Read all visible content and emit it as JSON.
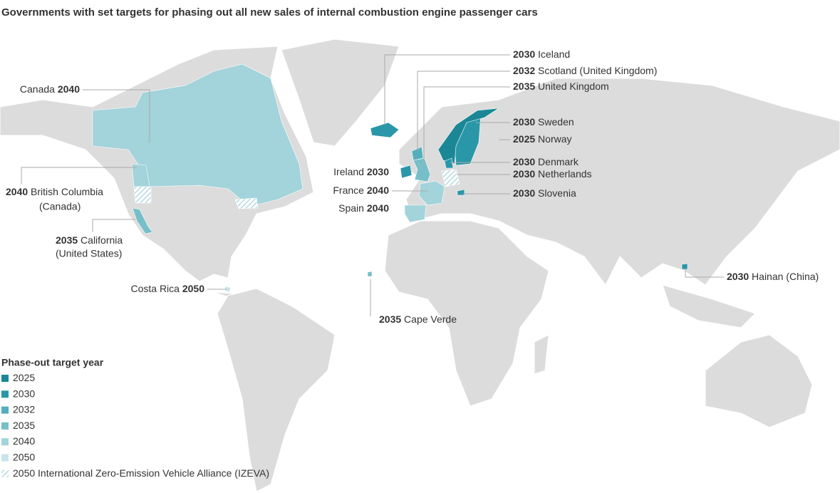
{
  "title": "Governments with set targets for phasing out all new sales of internal combustion engine passenger cars",
  "labels": [
    {
      "year": 2030,
      "name": "Iceland"
    },
    {
      "year": 2032,
      "name": "Scotland (United Kingdom)"
    },
    {
      "year": 2035,
      "name": "United Kingdom"
    },
    {
      "year": 2040,
      "name": "Canada"
    },
    {
      "year": 2030,
      "name": "Sweden"
    },
    {
      "year": 2025,
      "name": "Norway"
    },
    {
      "year": 2030,
      "name": "Denmark"
    },
    {
      "year": 2030,
      "name": "Ireland"
    },
    {
      "year": 2030,
      "name": "Netherlands"
    },
    {
      "year": 2040,
      "name": "France"
    },
    {
      "year": 2030,
      "name": "Slovenia"
    },
    {
      "year": 2040,
      "name": "Spain"
    },
    {
      "year": 2040,
      "name": "British Columbia",
      "line2": "(Canada)"
    },
    {
      "year": 2035,
      "name": "California",
      "line2": "(United States)"
    },
    {
      "year": 2050,
      "name": "Costa Rica"
    },
    {
      "year": 2035,
      "name": "Cape Verde"
    },
    {
      "year": 2030,
      "name": "Hainan (China)"
    }
  ],
  "legend": {
    "title": "Phase-out target year",
    "items": [
      {
        "year": 2025,
        "color": "#1b8796"
      },
      {
        "year": 2030,
        "color": "#2a97a8"
      },
      {
        "year": 2032,
        "color": "#55aebb"
      },
      {
        "year": 2035,
        "color": "#76bfc9"
      },
      {
        "year": 2040,
        "color": "#a3d3db"
      },
      {
        "year": 2050,
        "color": "#c8e4ea"
      },
      {
        "year": 2050,
        "name": "International Zero-Emission Vehicle Alliance (IZEVA)",
        "hatch": true,
        "color": "#a3d3db"
      }
    ]
  }
}
